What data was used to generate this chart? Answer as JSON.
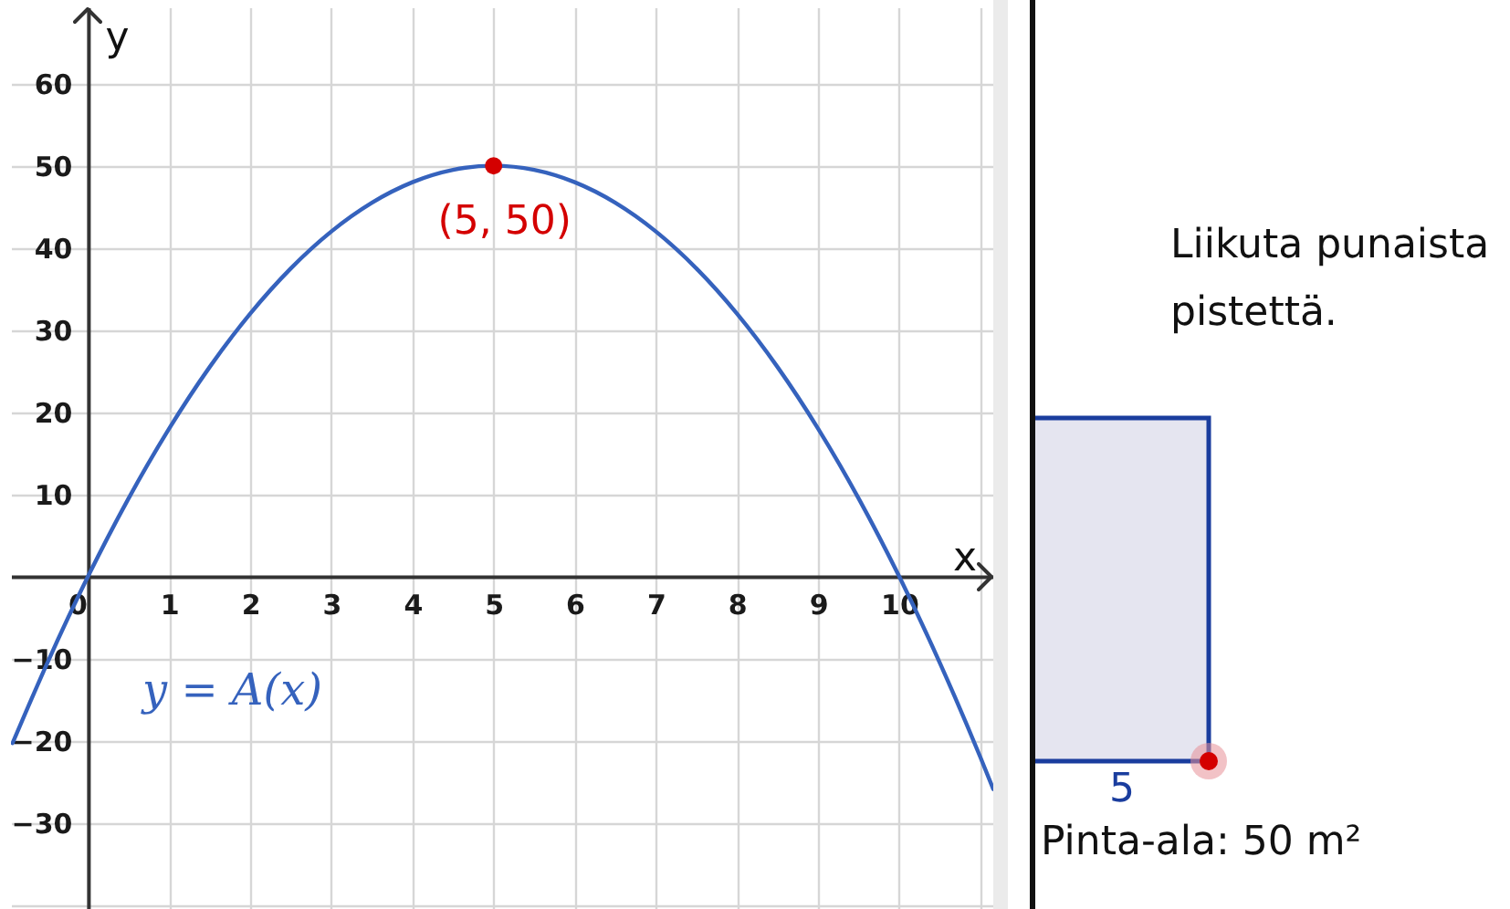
{
  "chart_data": [
    {
      "type": "line",
      "xlabel": "x",
      "ylabel": "y",
      "xlim": [
        -0.95,
        11.16
      ],
      "ylim": [
        -40.5,
        69.3
      ],
      "xticks": [
        0,
        1,
        2,
        3,
        4,
        5,
        6,
        7,
        8,
        9,
        10,
        {
          "value": 11,
          "label": null
        }
      ],
      "yticks": [
        {
          "value": -40,
          "label": null
        },
        -30,
        -20,
        -10,
        10,
        20,
        30,
        40,
        50,
        60
      ],
      "grid": true,
      "series": [
        {
          "name": "y = A(x)",
          "color": "#3562bd",
          "x": [
            -0.93,
            -0.5,
            0,
            0.5,
            1,
            1.5,
            2,
            2.5,
            3,
            3.5,
            4,
            4.5,
            5,
            5.5,
            6,
            6.5,
            7,
            7.5,
            8,
            8.5,
            9,
            9.5,
            10,
            10.5,
            11,
            11.16
          ],
          "values": [
            -20.3,
            -10.5,
            0,
            9.5,
            18,
            25.5,
            32,
            37.5,
            42,
            45.5,
            48,
            49.5,
            50,
            49.5,
            48,
            45.5,
            42,
            37.5,
            32,
            25.5,
            18,
            9.5,
            0,
            -10.5,
            -22,
            -25.9
          ]
        },
        {
          "type": "scatter",
          "color": "#d40000",
          "marker": "circle",
          "x": [
            5
          ],
          "values": [
            50
          ]
        }
      ],
      "annotations": [
        {
          "text": "(5, 50)",
          "x": 5,
          "y": 50
        }
      ]
    },
    {
      "type": "other",
      "annotations": [
        "Liikuta punaista pistettä.",
        "5",
        "Pinta-ala: 50 m²"
      ]
    }
  ]
}
